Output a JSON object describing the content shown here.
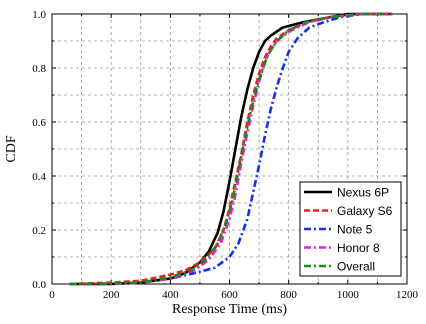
{
  "chart_data": {
    "type": "line",
    "xlabel": "Response Time (ms)",
    "ylabel": "CDF",
    "xlim": [
      0,
      1200
    ],
    "ylim": [
      0,
      1.0
    ],
    "xticks": [
      0,
      200,
      400,
      600,
      800,
      1000,
      1200
    ],
    "xtick_labels": [
      "0",
      "200",
      "400",
      "600",
      "800",
      "1000",
      "1200"
    ],
    "yticks": [
      0,
      0.2,
      0.4,
      0.6,
      0.8,
      1.0
    ],
    "ytick_labels": [
      "0.0",
      "0.2",
      "0.4",
      "0.6",
      "0.8",
      "1.0"
    ],
    "x_minor_step": 100,
    "y_minor_step": 0.1,
    "grid": true,
    "legend_position": "bottom-right",
    "series": [
      {
        "name": "Nexus 6P",
        "color": "#000000",
        "dash": "solid",
        "points": [
          [
            60,
            0
          ],
          [
            200,
            0
          ],
          [
            300,
            0.005
          ],
          [
            400,
            0.02
          ],
          [
            450,
            0.04
          ],
          [
            500,
            0.08
          ],
          [
            530,
            0.12
          ],
          [
            560,
            0.19
          ],
          [
            580,
            0.27
          ],
          [
            600,
            0.38
          ],
          [
            620,
            0.5
          ],
          [
            640,
            0.62
          ],
          [
            660,
            0.72
          ],
          [
            680,
            0.8
          ],
          [
            700,
            0.86
          ],
          [
            720,
            0.9
          ],
          [
            740,
            0.92
          ],
          [
            780,
            0.95
          ],
          [
            850,
            0.97
          ],
          [
            950,
            0.99
          ],
          [
            1000,
            1.0
          ],
          [
            1150,
            1.0
          ]
        ]
      },
      {
        "name": "Galaxy S6",
        "color": "#e8231a",
        "dash": "dashed",
        "points": [
          [
            60,
            0
          ],
          [
            200,
            0.005
          ],
          [
            300,
            0.012
          ],
          [
            400,
            0.035
          ],
          [
            450,
            0.05
          ],
          [
            500,
            0.08
          ],
          [
            550,
            0.13
          ],
          [
            580,
            0.2
          ],
          [
            600,
            0.28
          ],
          [
            620,
            0.38
          ],
          [
            640,
            0.48
          ],
          [
            660,
            0.6
          ],
          [
            680,
            0.7
          ],
          [
            700,
            0.78
          ],
          [
            720,
            0.84
          ],
          [
            740,
            0.88
          ],
          [
            760,
            0.91
          ],
          [
            800,
            0.94
          ],
          [
            860,
            0.97
          ],
          [
            950,
            0.99
          ],
          [
            1050,
            1.0
          ],
          [
            1150,
            1.0
          ]
        ]
      },
      {
        "name": "Note 5",
        "color": "#1530e6",
        "dash": "dashdot",
        "points": [
          [
            60,
            0
          ],
          [
            200,
            0
          ],
          [
            300,
            0.005
          ],
          [
            400,
            0.02
          ],
          [
            480,
            0.04
          ],
          [
            550,
            0.06
          ],
          [
            600,
            0.1
          ],
          [
            630,
            0.15
          ],
          [
            660,
            0.24
          ],
          [
            680,
            0.34
          ],
          [
            700,
            0.44
          ],
          [
            720,
            0.55
          ],
          [
            740,
            0.65
          ],
          [
            760,
            0.73
          ],
          [
            780,
            0.8
          ],
          [
            800,
            0.86
          ],
          [
            830,
            0.91
          ],
          [
            870,
            0.95
          ],
          [
            920,
            0.97
          ],
          [
            980,
            0.99
          ],
          [
            1050,
            1.0
          ],
          [
            1150,
            1.0
          ]
        ]
      },
      {
        "name": "Honor 8",
        "color": "#e620d8",
        "dash": "dashdot",
        "points": [
          [
            60,
            0
          ],
          [
            200,
            0
          ],
          [
            300,
            0.005
          ],
          [
            400,
            0.02
          ],
          [
            480,
            0.05
          ],
          [
            530,
            0.09
          ],
          [
            570,
            0.15
          ],
          [
            600,
            0.24
          ],
          [
            620,
            0.33
          ],
          [
            640,
            0.45
          ],
          [
            660,
            0.56
          ],
          [
            680,
            0.66
          ],
          [
            700,
            0.75
          ],
          [
            720,
            0.82
          ],
          [
            740,
            0.87
          ],
          [
            770,
            0.91
          ],
          [
            810,
            0.94
          ],
          [
            870,
            0.97
          ],
          [
            950,
            0.99
          ],
          [
            1050,
            1.0
          ],
          [
            1150,
            1.0
          ]
        ]
      },
      {
        "name": "Overall",
        "color": "#1a8a1a",
        "dash": "dashdot",
        "points": [
          [
            60,
            0
          ],
          [
            200,
            0.002
          ],
          [
            300,
            0.006
          ],
          [
            400,
            0.025
          ],
          [
            470,
            0.05
          ],
          [
            520,
            0.09
          ],
          [
            560,
            0.15
          ],
          [
            590,
            0.23
          ],
          [
            610,
            0.31
          ],
          [
            630,
            0.42
          ],
          [
            650,
            0.53
          ],
          [
            670,
            0.63
          ],
          [
            690,
            0.72
          ],
          [
            710,
            0.79
          ],
          [
            730,
            0.85
          ],
          [
            760,
            0.9
          ],
          [
            800,
            0.94
          ],
          [
            860,
            0.97
          ],
          [
            950,
            0.99
          ],
          [
            1050,
            1.0
          ],
          [
            1150,
            1.0
          ]
        ]
      }
    ]
  }
}
